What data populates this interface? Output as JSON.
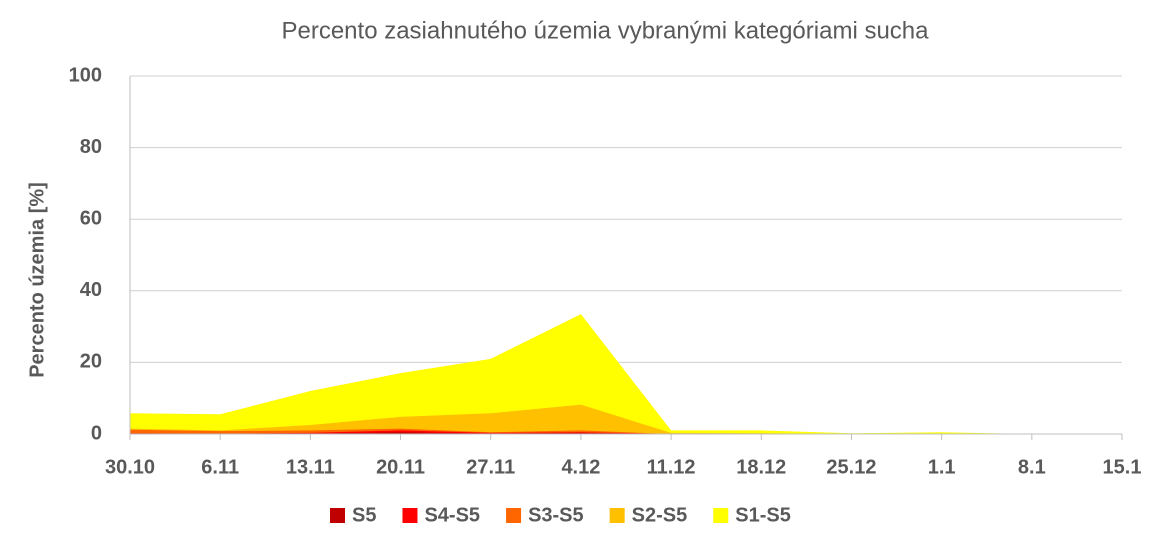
{
  "chart_data": {
    "type": "area",
    "title": "Percento zasiahnutého územia vybranými kategóriami sucha",
    "y_label": "Percento územia  [%]",
    "categories": [
      "30.10",
      "6.11",
      "13.11",
      "20.11",
      "27.11",
      "4.12",
      "11.12",
      "18.12",
      "25.12",
      "1.1",
      "8.1",
      "15.1"
    ],
    "series": [
      {
        "name": "S5",
        "color": "#c00000",
        "values": [
          0.1,
          0.1,
          0.1,
          0.5,
          0.1,
          0.3,
          0,
          0,
          0,
          0,
          0,
          0
        ]
      },
      {
        "name": "S4-S5",
        "color": "#ff0000",
        "values": [
          0.2,
          0.1,
          0.3,
          1,
          0.3,
          0.5,
          0,
          0,
          0,
          0,
          0,
          0
        ]
      },
      {
        "name": "S3-S5",
        "color": "#ff6600",
        "values": [
          1.2,
          0.8,
          1,
          1.5,
          0.5,
          1,
          0,
          0,
          0,
          0,
          0,
          0
        ]
      },
      {
        "name": "S2-S5",
        "color": "#ffc000",
        "values": [
          1.5,
          1,
          2.5,
          4.8,
          5.8,
          8.2,
          0.3,
          0.2,
          0,
          0,
          0,
          0
        ]
      },
      {
        "name": "S1-S5",
        "color": "#ffff00",
        "values": [
          5.8,
          5.5,
          12,
          17,
          21,
          33.5,
          1,
          1,
          0.2,
          0.5,
          0,
          0
        ]
      }
    ],
    "ylim": [
      0,
      100
    ],
    "yticks": [
      0,
      20,
      40,
      60,
      80,
      100
    ],
    "grid": true
  }
}
